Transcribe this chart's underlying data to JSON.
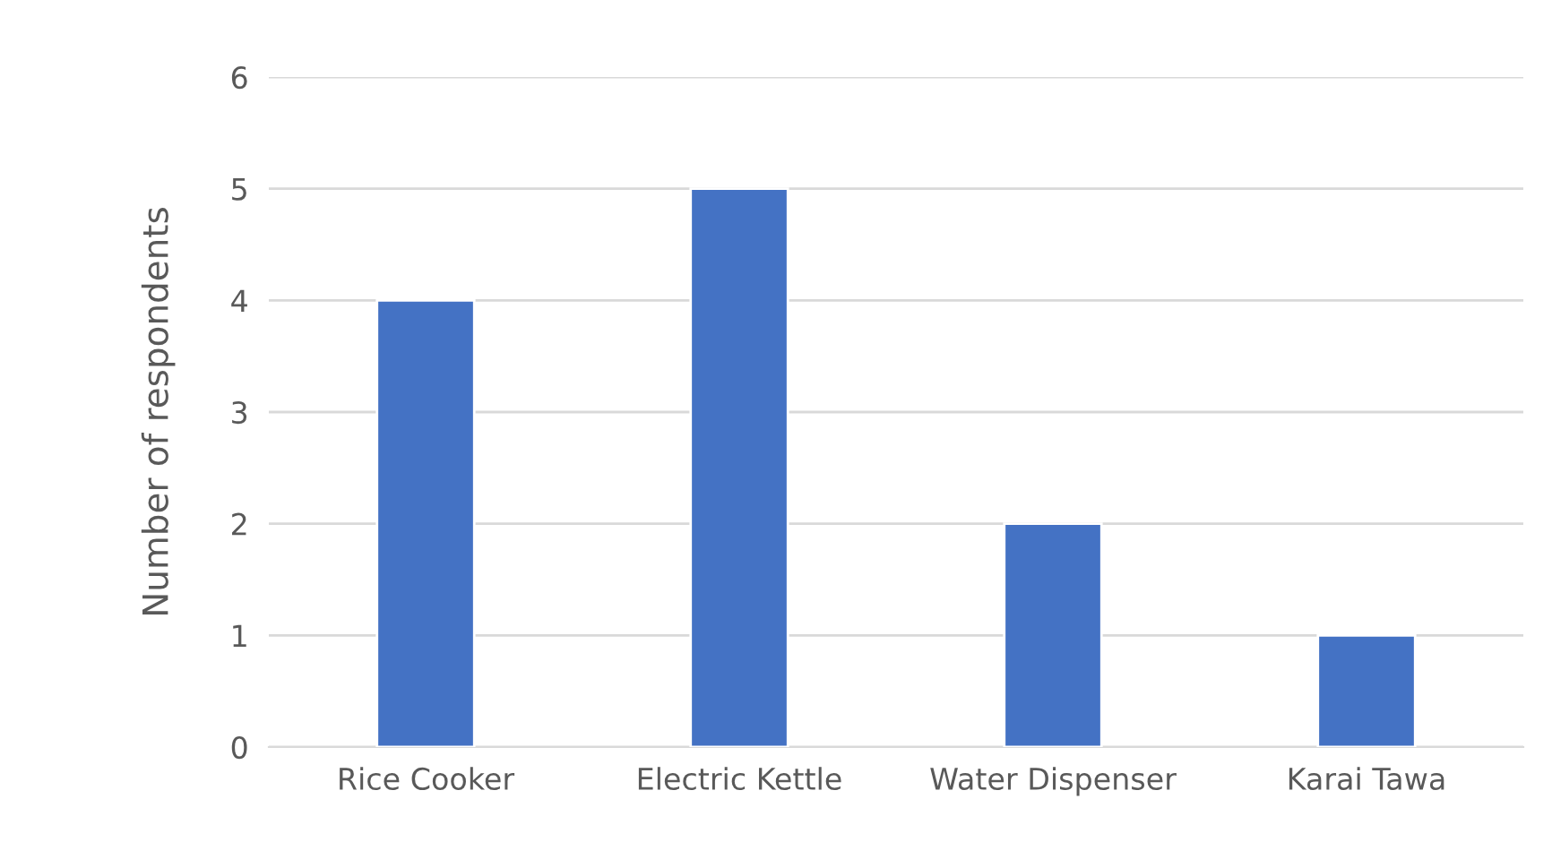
{
  "chart_data": {
    "type": "bar",
    "ylabel": "Number of respondents",
    "categories": [
      "Rice Cooker",
      "Electric Kettle",
      "Water Dispenser",
      "Karai Tawa"
    ],
    "values": [
      4,
      5,
      2,
      1
    ],
    "color": "#4472c4",
    "ylim": [
      0,
      6
    ],
    "yticks": [
      0,
      1,
      2,
      3,
      4,
      5,
      6
    ],
    "grid": "y"
  }
}
